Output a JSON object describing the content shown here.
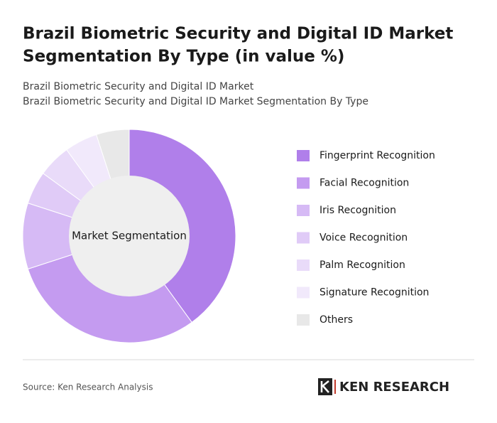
{
  "chart_data": {
    "type": "donut",
    "title": [
      "Brazil Biometric Security and Digital ID Market",
      "Segmentation By Type (in value %)"
    ],
    "subtitle": [
      "Brazil Biometric Security and Digital ID Market",
      "Brazil Biometric Security and Digital ID Market Segmentation By Type"
    ],
    "center_label": "Market Segmentation",
    "categories": [
      "Fingerprint Recognition",
      "Facial Recognition",
      "Iris Recognition",
      "Voice Recognition",
      "Palm Recognition",
      "Signature Recognition",
      "Others"
    ],
    "values": [
      40,
      30,
      10,
      5,
      5,
      5,
      5
    ],
    "colors": [
      "#b07fea",
      "#c49bf0",
      "#d6baf5",
      "#e0cbf7",
      "#e9dbf9",
      "#f1e9fb",
      "#e8e8e8"
    ]
  },
  "footer": {
    "source": "Source: Ken Research Analysis",
    "logo": "KEN RESEARCH"
  }
}
